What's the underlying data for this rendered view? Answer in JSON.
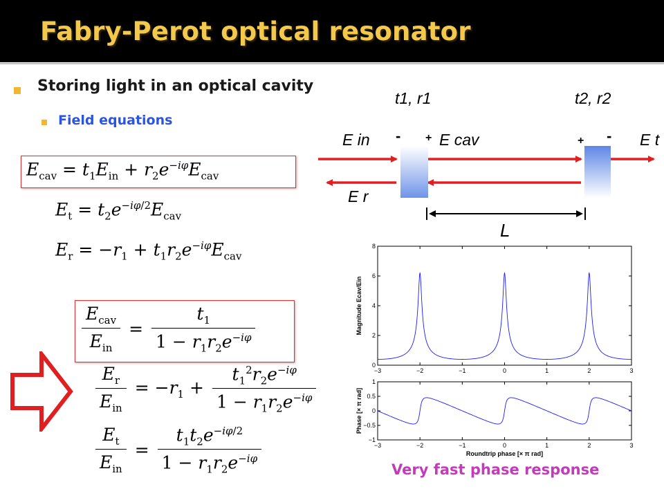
{
  "slide": {
    "title": "Fabry-Perot optical resonator",
    "bullet_main": "Storing light in an optical cavity",
    "bullet_sub": "Field equations",
    "caption": "Very fast phase response"
  },
  "diagram": {
    "mirror1_label": "t1, r1",
    "mirror2_label": "t2, r2",
    "E_in": "E in",
    "E_cav": "E cav",
    "E_t": "E t",
    "E_r": "E r",
    "length_label": "L",
    "sign_minus": "-",
    "sign_plus": "+"
  },
  "colors": {
    "title": "#f2c94c",
    "bullet": "#f2b632",
    "sub_bullet_text": "#2b55e0",
    "box_border": "#e03030",
    "arrow": "#e02020",
    "curve": "#1a1aff",
    "caption": "#c23bb8"
  },
  "chart_data": [
    {
      "type": "line",
      "ylabel": "Magnitude Ecav/Ein",
      "xlabel": "",
      "xlim": [
        -3,
        3
      ],
      "ylim": [
        0,
        8
      ],
      "xticks": [
        "-3",
        "-2",
        "-1",
        "0",
        "1",
        "2",
        "3"
      ],
      "yticks": [
        "0",
        "2",
        "4",
        "6",
        "8"
      ],
      "peaks_at": [
        -2,
        0,
        2
      ],
      "peak_value": 6.2,
      "baseline_value": 0.35,
      "grid": false
    },
    {
      "type": "line",
      "ylabel": "Phase [× π rad]",
      "xlabel": "Roundtrip phase [× π rad]",
      "xlim": [
        -3,
        3
      ],
      "ylim": [
        -1,
        1
      ],
      "xticks": [
        "-3",
        "-2",
        "-1",
        "0",
        "1",
        "2",
        "3"
      ],
      "yticks": [
        "1",
        "0.5",
        "0",
        "-0.5",
        "-1"
      ],
      "sawtooth_max": 0.45,
      "sawtooth_min": -0.45,
      "jumps_at": [
        -2,
        0,
        2
      ],
      "grid": false
    }
  ]
}
